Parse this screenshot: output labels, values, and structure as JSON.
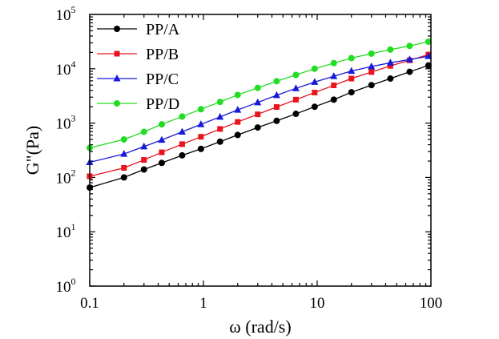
{
  "chart_data": {
    "type": "line",
    "title": "",
    "xlabel": "ω (rad/s)",
    "ylabel": "G\"(Pa)",
    "x_scale": "log",
    "y_scale": "log",
    "xlim": [
      0.1,
      100
    ],
    "ylim": [
      1,
      100000
    ],
    "grid": false,
    "legend_position": "top-left",
    "x_tick_labels": [
      {
        "value": 0.1,
        "label": "0.1"
      },
      {
        "value": 1,
        "label": "1"
      },
      {
        "value": 10,
        "label": "10"
      },
      {
        "value": 100,
        "label": "100"
      }
    ],
    "y_tick_labels": [
      {
        "value": 1,
        "base": "10",
        "exp": "0"
      },
      {
        "value": 10,
        "base": "10",
        "exp": "1"
      },
      {
        "value": 100,
        "base": "10",
        "exp": "2"
      },
      {
        "value": 1000,
        "base": "10",
        "exp": "3"
      },
      {
        "value": 10000,
        "base": "10",
        "exp": "4"
      },
      {
        "value": 100000,
        "base": "10",
        "exp": "5"
      }
    ],
    "x": [
      0.1,
      0.2,
      0.3,
      0.43,
      0.65,
      0.95,
      1.4,
      2.0,
      3.0,
      4.4,
      6.5,
      9.5,
      14,
      20,
      30,
      44,
      65,
      95
    ],
    "series": [
      {
        "name": "PP/A",
        "color": "#000000",
        "marker": "circle",
        "values": [
          65,
          100,
          140,
          185,
          255,
          335,
          455,
          605,
          830,
          1100,
          1480,
          2000,
          2700,
          3700,
          5000,
          6600,
          8800,
          11500
        ]
      },
      {
        "name": "PP/B",
        "color": "#e8141e",
        "marker": "square",
        "values": [
          105,
          150,
          210,
          290,
          410,
          560,
          780,
          1050,
          1450,
          1980,
          2700,
          3650,
          4950,
          6600,
          8700,
          11300,
          14300,
          18200
        ]
      },
      {
        "name": "PP/C",
        "color": "#1818d8",
        "marker": "triangle",
        "values": [
          190,
          270,
          370,
          490,
          690,
          950,
          1300,
          1750,
          2400,
          3250,
          4350,
          5700,
          7300,
          9100,
          11000,
          12900,
          14800,
          17000
        ]
      },
      {
        "name": "PP/D",
        "color": "#22dd22",
        "marker": "circle",
        "values": [
          350,
          500,
          690,
          950,
          1320,
          1800,
          2450,
          3300,
          4450,
          5900,
          7700,
          10000,
          12700,
          15700,
          19000,
          22500,
          26300,
          31500
        ]
      }
    ]
  }
}
